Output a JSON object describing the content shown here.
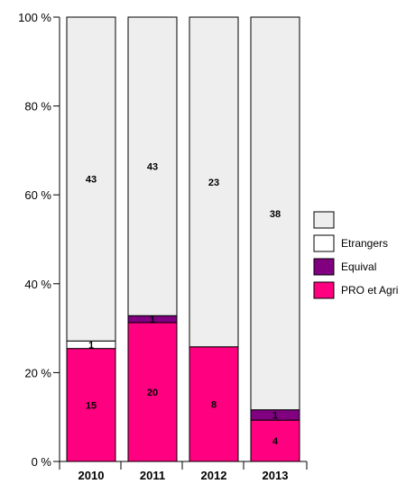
{
  "chart_data": {
    "type": "bar",
    "stacked": "percent",
    "categories": [
      "2010",
      "2011",
      "2012",
      "2013"
    ],
    "series": [
      {
        "name": "PRO et Agri",
        "color": "#ff0080",
        "values": [
          15,
          20,
          8,
          4
        ]
      },
      {
        "name": "Equival",
        "color": "#800080",
        "values": [
          0,
          1,
          0,
          1
        ]
      },
      {
        "name": "Etrangers",
        "color": "#ffffff",
        "values": [
          1,
          0,
          0,
          0
        ]
      },
      {
        "name": "",
        "color": "#eeeeee",
        "values": [
          43,
          43,
          23,
          38
        ]
      }
    ],
    "y_ticks": [
      "0 %",
      "20 %",
      "40 %",
      "60 %",
      "80 %",
      "100 %"
    ],
    "ylim": [
      0,
      100
    ],
    "legend_position": "right",
    "grid": false
  }
}
